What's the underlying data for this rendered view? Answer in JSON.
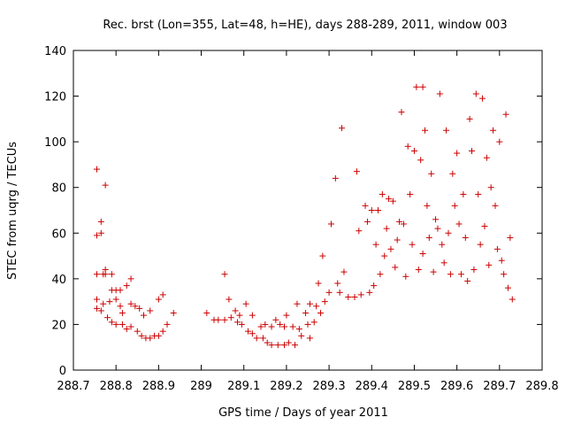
{
  "chart_data": {
    "type": "scatter",
    "title": "Rec. brst (Lon=355, Lat=48, h=HE), days 288-289, 2011, window 003",
    "xlabel": "GPS time / Days of year 2011",
    "ylabel": "STEC from uqrg / TECUs",
    "xlim": [
      288.7,
      289.8
    ],
    "ylim": [
      0,
      140
    ],
    "xticks": [
      288.7,
      288.8,
      288.9,
      289,
      289.1,
      289.2,
      289.3,
      289.4,
      289.5,
      289.6,
      289.7,
      289.8
    ],
    "xtick_labels": [
      "288.7",
      "288.8",
      "288.9",
      "289",
      "289.1",
      "289.2",
      "289.3",
      "289.4",
      "289.5",
      "289.6",
      "289.7",
      "289.8"
    ],
    "yticks": [
      0,
      20,
      40,
      60,
      80,
      100,
      120,
      140
    ],
    "ytick_labels": [
      "0",
      "20",
      "40",
      "60",
      "80",
      "100",
      "120",
      "140"
    ],
    "grid": false,
    "marker": "+",
    "color": "#cc0000",
    "points": [
      [
        288.755,
        88
      ],
      [
        288.755,
        59
      ],
      [
        288.755,
        42
      ],
      [
        288.755,
        31
      ],
      [
        288.755,
        27
      ],
      [
        288.765,
        65
      ],
      [
        288.765,
        60
      ],
      [
        288.77,
        42
      ],
      [
        288.765,
        26
      ],
      [
        288.77,
        29
      ],
      [
        288.775,
        81
      ],
      [
        288.775,
        44
      ],
      [
        288.775,
        42
      ],
      [
        288.78,
        23
      ],
      [
        288.785,
        30
      ],
      [
        288.79,
        42
      ],
      [
        288.79,
        35
      ],
      [
        288.79,
        21
      ],
      [
        288.8,
        35
      ],
      [
        288.8,
        31
      ],
      [
        288.8,
        20
      ],
      [
        288.81,
        35
      ],
      [
        288.81,
        28
      ],
      [
        288.815,
        25
      ],
      [
        288.815,
        20
      ],
      [
        288.825,
        37
      ],
      [
        288.825,
        18
      ],
      [
        288.835,
        40
      ],
      [
        288.835,
        29
      ],
      [
        288.835,
        19
      ],
      [
        288.845,
        28
      ],
      [
        288.85,
        17
      ],
      [
        288.855,
        27
      ],
      [
        288.86,
        15
      ],
      [
        288.865,
        24
      ],
      [
        288.87,
        14
      ],
      [
        288.88,
        26
      ],
      [
        288.88,
        14
      ],
      [
        288.89,
        15
      ],
      [
        288.9,
        31
      ],
      [
        288.9,
        15
      ],
      [
        288.91,
        33
      ],
      [
        288.91,
        17
      ],
      [
        288.92,
        20
      ],
      [
        288.935,
        25
      ],
      [
        289.013,
        25
      ],
      [
        289.03,
        22
      ],
      [
        289.04,
        22
      ],
      [
        289.055,
        42
      ],
      [
        289.055,
        22
      ],
      [
        289.065,
        31
      ],
      [
        289.07,
        23
      ],
      [
        289.08,
        26
      ],
      [
        289.085,
        21
      ],
      [
        289.09,
        24
      ],
      [
        289.095,
        20
      ],
      [
        289.105,
        29
      ],
      [
        289.11,
        17
      ],
      [
        289.12,
        24
      ],
      [
        289.12,
        16
      ],
      [
        289.13,
        14
      ],
      [
        289.14,
        19
      ],
      [
        289.145,
        14
      ],
      [
        289.15,
        20
      ],
      [
        289.155,
        12
      ],
      [
        289.165,
        19
      ],
      [
        289.165,
        11
      ],
      [
        289.175,
        22
      ],
      [
        289.18,
        11
      ],
      [
        289.185,
        20
      ],
      [
        289.195,
        19
      ],
      [
        289.195,
        11
      ],
      [
        289.2,
        24
      ],
      [
        289.205,
        12
      ],
      [
        289.215,
        19
      ],
      [
        289.22,
        11
      ],
      [
        289.225,
        29
      ],
      [
        289.23,
        18
      ],
      [
        289.235,
        15
      ],
      [
        289.245,
        25
      ],
      [
        289.25,
        20
      ],
      [
        289.255,
        29
      ],
      [
        289.255,
        14
      ],
      [
        289.265,
        21
      ],
      [
        289.27,
        28
      ],
      [
        289.275,
        38
      ],
      [
        289.28,
        25
      ],
      [
        289.285,
        50
      ],
      [
        289.29,
        30
      ],
      [
        289.3,
        34
      ],
      [
        289.305,
        64
      ],
      [
        289.315,
        84
      ],
      [
        289.32,
        38
      ],
      [
        289.325,
        34
      ],
      [
        289.33,
        106
      ],
      [
        289.335,
        43
      ],
      [
        289.345,
        32
      ],
      [
        289.36,
        32
      ],
      [
        289.365,
        87
      ],
      [
        289.37,
        61
      ],
      [
        289.375,
        33
      ],
      [
        289.385,
        72
      ],
      [
        289.39,
        65
      ],
      [
        289.395,
        34
      ],
      [
        289.4,
        70
      ],
      [
        289.405,
        37
      ],
      [
        289.41,
        55
      ],
      [
        289.415,
        70
      ],
      [
        289.42,
        42
      ],
      [
        289.425,
        77
      ],
      [
        289.43,
        50
      ],
      [
        289.435,
        62
      ],
      [
        289.44,
        75
      ],
      [
        289.445,
        53
      ],
      [
        289.45,
        74
      ],
      [
        289.455,
        45
      ],
      [
        289.46,
        57
      ],
      [
        289.465,
        65
      ],
      [
        289.47,
        113
      ],
      [
        289.475,
        64
      ],
      [
        289.48,
        41
      ],
      [
        289.485,
        98
      ],
      [
        289.49,
        77
      ],
      [
        289.495,
        55
      ],
      [
        289.5,
        96
      ],
      [
        289.505,
        124
      ],
      [
        289.51,
        44
      ],
      [
        289.515,
        92
      ],
      [
        289.52,
        124
      ],
      [
        289.52,
        51
      ],
      [
        289.525,
        105
      ],
      [
        289.53,
        72
      ],
      [
        289.535,
        58
      ],
      [
        289.54,
        86
      ],
      [
        289.545,
        43
      ],
      [
        289.55,
        66
      ],
      [
        289.555,
        62
      ],
      [
        289.56,
        121
      ],
      [
        289.565,
        55
      ],
      [
        289.57,
        47
      ],
      [
        289.575,
        105
      ],
      [
        289.58,
        60
      ],
      [
        289.585,
        42
      ],
      [
        289.59,
        86
      ],
      [
        289.595,
        72
      ],
      [
        289.6,
        95
      ],
      [
        289.605,
        64
      ],
      [
        289.61,
        42
      ],
      [
        289.615,
        77
      ],
      [
        289.62,
        58
      ],
      [
        289.625,
        39
      ],
      [
        289.63,
        110
      ],
      [
        289.635,
        96
      ],
      [
        289.64,
        44
      ],
      [
        289.645,
        121
      ],
      [
        289.65,
        77
      ],
      [
        289.655,
        55
      ],
      [
        289.66,
        119
      ],
      [
        289.665,
        63
      ],
      [
        289.67,
        93
      ],
      [
        289.675,
        46
      ],
      [
        289.68,
        80
      ],
      [
        289.685,
        105
      ],
      [
        289.69,
        72
      ],
      [
        289.695,
        53
      ],
      [
        289.7,
        100
      ],
      [
        289.705,
        48
      ],
      [
        289.71,
        42
      ],
      [
        289.715,
        112
      ],
      [
        289.72,
        36
      ],
      [
        289.725,
        58
      ],
      [
        289.73,
        31
      ]
    ]
  }
}
